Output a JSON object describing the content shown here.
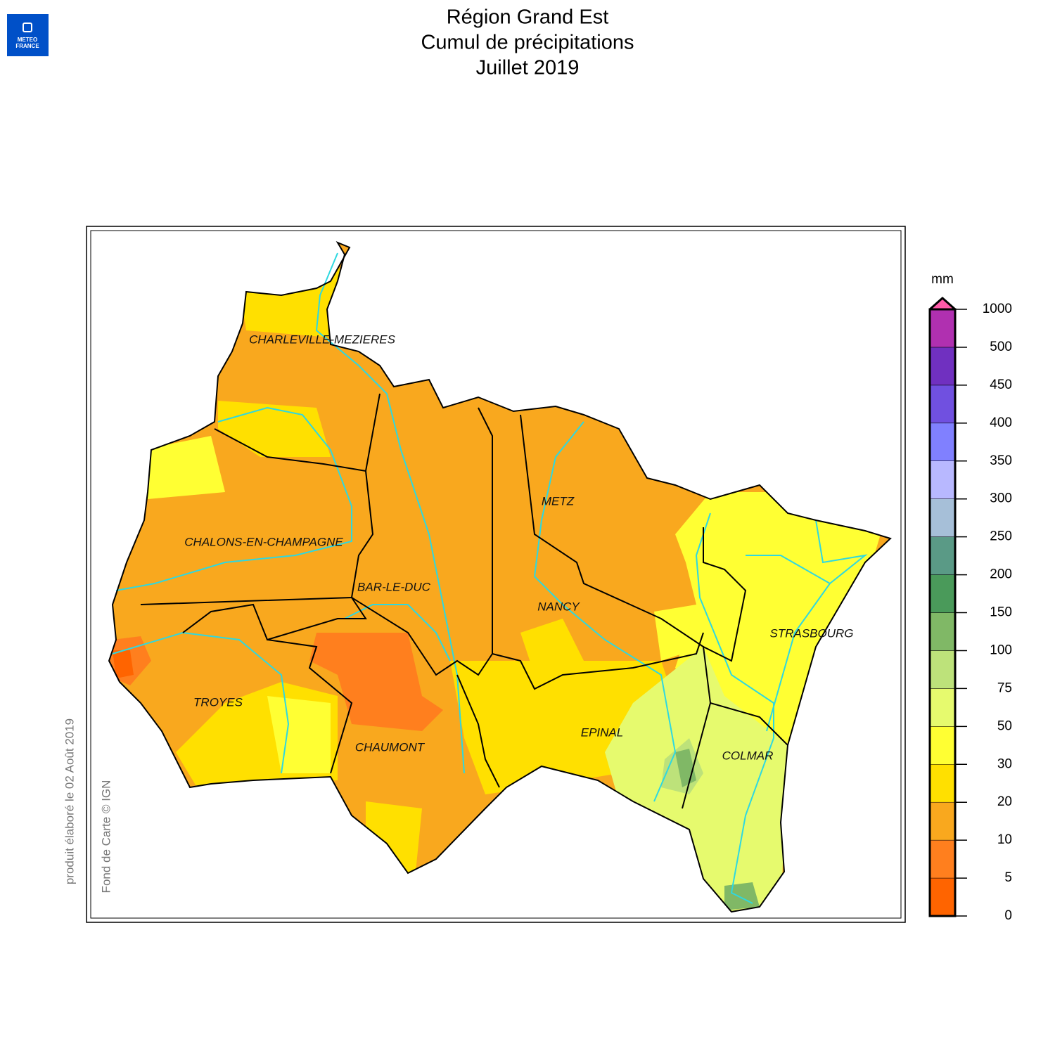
{
  "header": {
    "title_lines": [
      "Région Grand Est",
      "Cumul de précipitations",
      "Juillet 2019"
    ],
    "logo": [
      "METEO",
      "FRANCE"
    ]
  },
  "map": {
    "cities": [
      "CHARLEVILLE-MEZIERES",
      "METZ",
      "CHALONS-EN-CHAMPAGNE",
      "BAR-LE-DUC",
      "NANCY",
      "STRASBOURG",
      "TROYES",
      "EPINAL",
      "CHAUMONT",
      "COLMAR"
    ],
    "credits": [
      "produit élaboré le 02 Août 2019",
      "Fond de Carte © IGN"
    ]
  },
  "legend": {
    "unit": "mm",
    "ticks": [
      0,
      5,
      10,
      20,
      30,
      50,
      75,
      100,
      150,
      200,
      250,
      300,
      350,
      400,
      450,
      500,
      1000
    ],
    "colors": [
      "#ff6400",
      "#ff7f1e",
      "#f9a81e",
      "#ffe000",
      "#ffff33",
      "#e6fa6e",
      "#bde27a",
      "#80b866",
      "#4a9a5a",
      "#5a9a86",
      "#a6bfd8",
      "#b8b8ff",
      "#8080ff",
      "#7050e0",
      "#7030c0",
      "#b030b0"
    ],
    "overflow_color": "#ff5aa8"
  }
}
